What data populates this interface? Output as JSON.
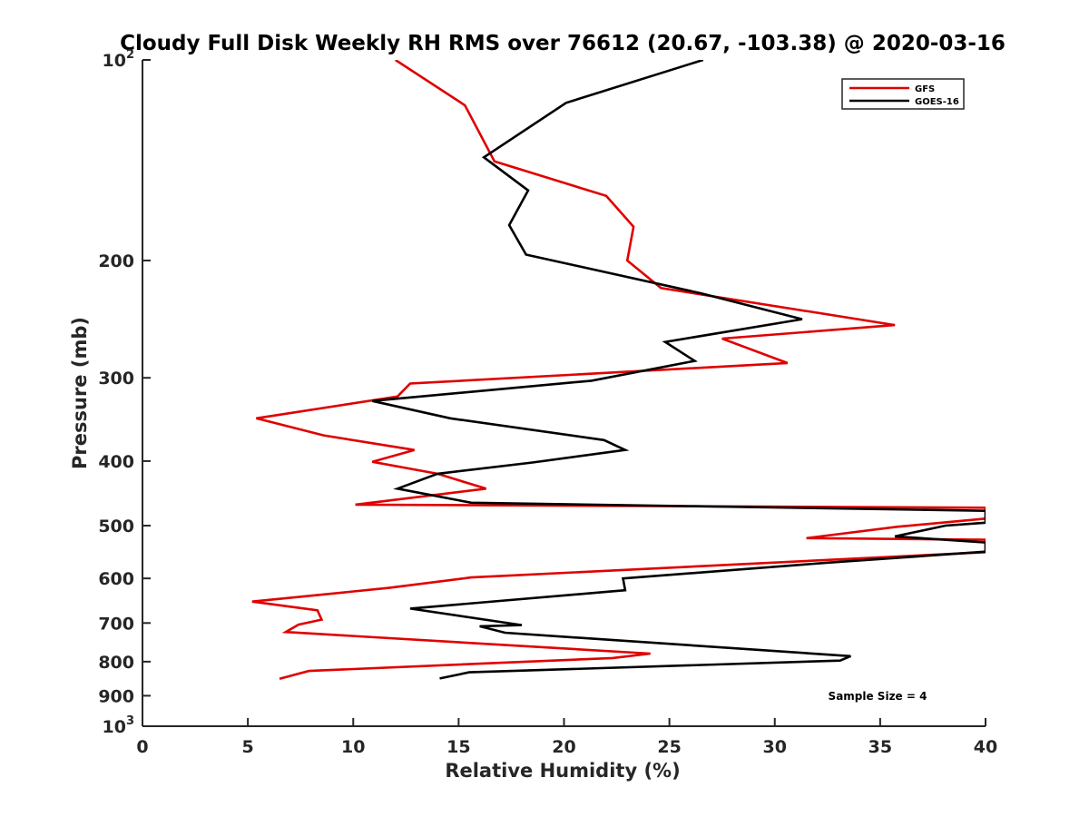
{
  "chart_data": {
    "type": "line",
    "title": "Cloudy Full Disk Weekly RH RMS over 76612 (20.67, -103.38) @ 2020-03-16",
    "xlabel": "Relative Humidity (%)",
    "ylabel": "Pressure (mb)",
    "xlim": [
      0,
      40
    ],
    "ylim": [
      100,
      1000
    ],
    "yscale": "log",
    "y_reversed": true,
    "x_ticks": [
      0,
      5,
      10,
      15,
      20,
      25,
      30,
      35,
      40
    ],
    "x_tick_labels": [
      "0",
      "5",
      "10",
      "15",
      "20",
      "25",
      "30",
      "35",
      "40"
    ],
    "y_ticks": [
      {
        "value": 100,
        "label": "10",
        "exp": "2"
      },
      {
        "value": 200,
        "label": "200"
      },
      {
        "value": 300,
        "label": "300"
      },
      {
        "value": 400,
        "label": "400"
      },
      {
        "value": 500,
        "label": "500"
      },
      {
        "value": 600,
        "label": "600"
      },
      {
        "value": 700,
        "label": "700"
      },
      {
        "value": 800,
        "label": "800"
      },
      {
        "value": 900,
        "label": "900"
      },
      {
        "value": 1000,
        "label": "10",
        "exp": "3"
      }
    ],
    "legend_position": "top-right",
    "series": [
      {
        "name": "GFS",
        "color": "#e00000",
        "points": [
          [
            12.0,
            100
          ],
          [
            15.3,
            117
          ],
          [
            16.7,
            142
          ],
          [
            22.0,
            160
          ],
          [
            23.3,
            178
          ],
          [
            23.0,
            200
          ],
          [
            24.6,
            220
          ],
          [
            35.7,
            250
          ],
          [
            27.5,
            262
          ],
          [
            30.6,
            285
          ],
          [
            12.7,
            306
          ],
          [
            12.1,
            320
          ],
          [
            5.4,
            345
          ],
          [
            8.6,
            366
          ],
          [
            12.9,
            385
          ],
          [
            10.9,
            401
          ],
          [
            14.0,
            418
          ],
          [
            16.3,
            440
          ],
          [
            10.1,
            465
          ],
          [
            40.0,
            470
          ],
          [
            40.0,
            488
          ],
          [
            35.8,
            502
          ],
          [
            31.5,
            522
          ],
          [
            40.0,
            525
          ],
          [
            40.0,
            548
          ],
          [
            15.6,
            598
          ],
          [
            11.7,
            620
          ],
          [
            5.2,
            650
          ],
          [
            8.3,
            670
          ],
          [
            8.5,
            692
          ],
          [
            7.4,
            704
          ],
          [
            6.8,
            722
          ],
          [
            24.1,
            778
          ],
          [
            22.3,
            790
          ],
          [
            7.9,
            826
          ],
          [
            6.5,
            849
          ]
        ]
      },
      {
        "name": "GOES-16",
        "color": "#000000",
        "points": [
          [
            26.6,
            100
          ],
          [
            20.1,
            116
          ],
          [
            16.2,
            140
          ],
          [
            18.3,
            157
          ],
          [
            17.4,
            177
          ],
          [
            18.2,
            196
          ],
          [
            26.5,
            224
          ],
          [
            31.3,
            245
          ],
          [
            24.8,
            265
          ],
          [
            26.2,
            283
          ],
          [
            21.3,
            303
          ],
          [
            10.9,
            325
          ],
          [
            14.6,
            345
          ],
          [
            21.9,
            372
          ],
          [
            22.9,
            385
          ],
          [
            18.5,
            402
          ],
          [
            14.0,
            418
          ],
          [
            12.1,
            440
          ],
          [
            15.6,
            462
          ],
          [
            40.0,
            475
          ],
          [
            40.0,
            495
          ],
          [
            38.1,
            500
          ],
          [
            35.7,
            519
          ],
          [
            40.0,
            530
          ],
          [
            40.0,
            547
          ],
          [
            32.6,
            568
          ],
          [
            22.8,
            600
          ],
          [
            22.9,
            625
          ],
          [
            12.7,
            666
          ],
          [
            18.0,
            705
          ],
          [
            16.0,
            708
          ],
          [
            17.2,
            724
          ],
          [
            33.6,
            785
          ],
          [
            33.1,
            797
          ],
          [
            15.5,
            830
          ],
          [
            14.1,
            848
          ]
        ]
      }
    ],
    "annotation": "Sample Size = 4"
  }
}
